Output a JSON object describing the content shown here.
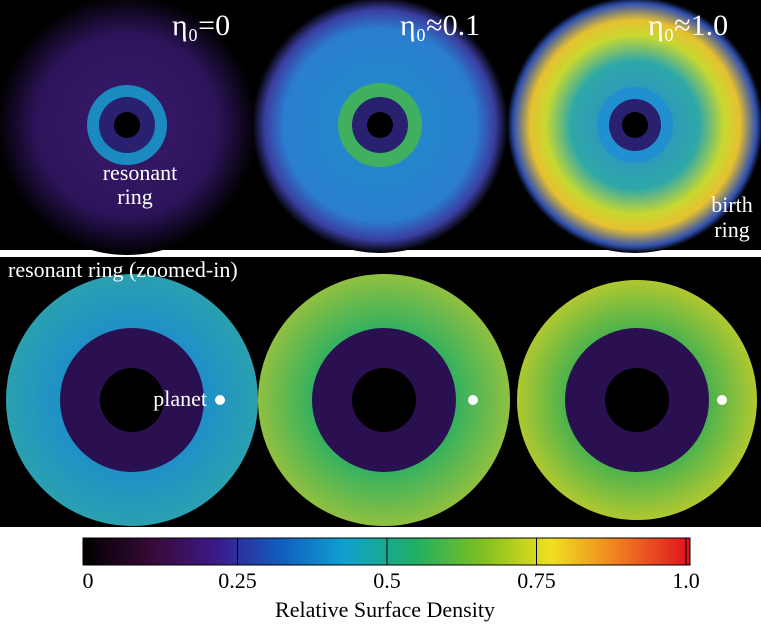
{
  "panels": {
    "labels": [
      "η₀=0",
      "η₀≈0.1",
      "η₀≈1.0"
    ],
    "resonant_ring": [
      "resonant",
      "ring"
    ],
    "birth_ring": [
      "birth",
      "ring"
    ],
    "zoom_title": "resonant ring (zoomed-in)",
    "planet": "planet"
  },
  "chart_data": {
    "type": "colorbar",
    "xlabel": "Relative Surface Density",
    "xlim": [
      0,
      1
    ],
    "xticks": [
      0,
      0.25,
      0.5,
      0.75,
      {
        "value": 1,
        "label": "1.0"
      }
    ]
  }
}
